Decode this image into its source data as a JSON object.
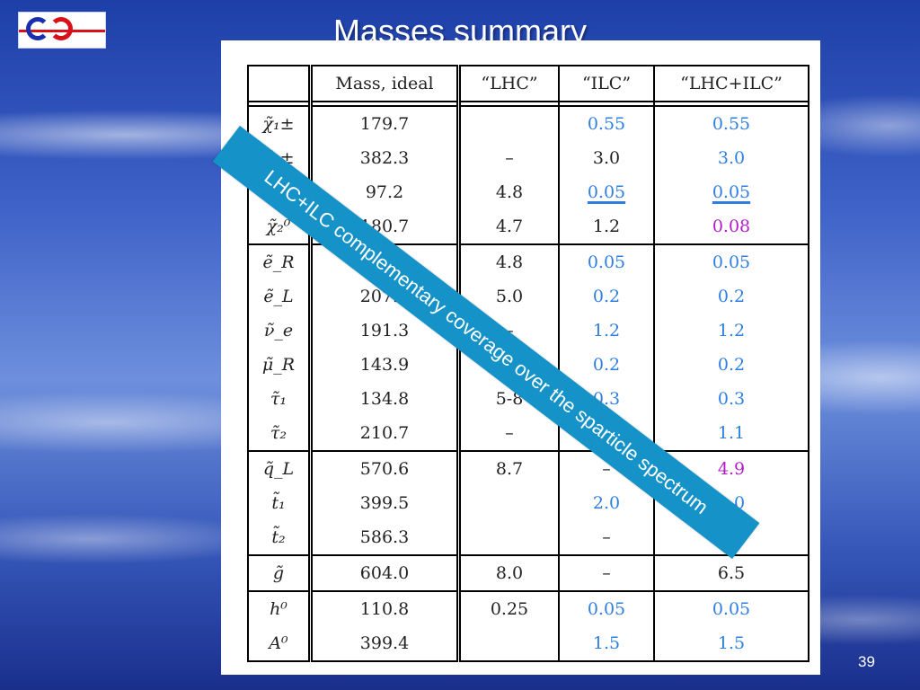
{
  "slide": {
    "title": "Masses summary",
    "page_number": "39",
    "banner": "LHC+ILC complementary coverage over the sparticle spectrum"
  },
  "table": {
    "headers": [
      "",
      "Mass, ideal",
      "“LHC”",
      "“ILC”",
      "“LHC+ILC”"
    ],
    "groups": [
      [
        {
          "p": "χ̃₁±",
          "mass": "179.7",
          "lhc": "",
          "ilc": "0.55",
          "ilc_style": "blue",
          "comb": "0.55",
          "comb_style": "blue"
        },
        {
          "p": "χ̃₂±",
          "mass": "382.3",
          "lhc": "–",
          "ilc": "3.0",
          "ilc_style": "black",
          "comb": "3.0",
          "comb_style": "blue"
        },
        {
          "p": "χ̃₁⁰",
          "mass": "97.2",
          "lhc": "4.8",
          "ilc": "0.05",
          "ilc_style": "blue ul",
          "comb": "0.05",
          "comb_style": "blue ul"
        },
        {
          "p": "χ̃₂⁰",
          "mass": "180.7",
          "lhc": "4.7",
          "ilc": "1.2",
          "ilc_style": "black",
          "comb": "0.08",
          "comb_style": "magenta"
        }
      ],
      [
        {
          "p": "ẽ_R",
          "mass": "",
          "lhc": "4.8",
          "ilc": "0.05",
          "ilc_style": "blue",
          "comb": "0.05",
          "comb_style": "blue"
        },
        {
          "p": "ẽ_L",
          "mass": "207.1",
          "lhc": "5.0",
          "ilc": "0.2",
          "ilc_style": "blue",
          "comb": "0.2",
          "comb_style": "blue"
        },
        {
          "p": "ν̃_e",
          "mass": "191.3",
          "lhc": "–",
          "ilc": "1.2",
          "ilc_style": "blue",
          "comb": "1.2",
          "comb_style": "blue"
        },
        {
          "p": "μ̃_R",
          "mass": "143.9",
          "lhc": "",
          "ilc": "0.2",
          "ilc_style": "blue",
          "comb": "0.2",
          "comb_style": "blue"
        },
        {
          "p": "τ̃₁",
          "mass": "134.8",
          "lhc": "5-8",
          "ilc": "0.3",
          "ilc_style": "blue",
          "comb": "0.3",
          "comb_style": "blue"
        },
        {
          "p": "τ̃₂",
          "mass": "210.7",
          "lhc": "–",
          "ilc": "",
          "ilc_style": "blue",
          "comb": "1.1",
          "comb_style": "blue"
        }
      ],
      [
        {
          "p": "q̃_L",
          "mass": "570.6",
          "lhc": "8.7",
          "ilc": "–",
          "ilc_style": "black",
          "comb": "4.9",
          "comb_style": "magenta"
        },
        {
          "p": "t̃₁",
          "mass": "399.5",
          "lhc": "",
          "ilc": "2.0",
          "ilc_style": "blue",
          "comb": "2.0",
          "comb_style": "blue"
        },
        {
          "p": "t̃₂",
          "mass": "586.3",
          "lhc": "",
          "ilc": "–",
          "ilc_style": "black",
          "comb": "",
          "comb_style": "black"
        }
      ],
      [
        {
          "p": "g̃",
          "mass": "604.0",
          "lhc": "8.0",
          "ilc": "–",
          "ilc_style": "black",
          "comb": "6.5",
          "comb_style": "black"
        }
      ],
      [
        {
          "p": "h⁰",
          "mass": "110.8",
          "lhc": "0.25",
          "ilc": "0.05",
          "ilc_style": "blue",
          "comb": "0.05",
          "comb_style": "blue"
        },
        {
          "p": "A⁰",
          "mass": "399.4",
          "lhc": "",
          "ilc": "1.5",
          "ilc_style": "blue",
          "comb": "1.5",
          "comb_style": "blue"
        }
      ]
    ]
  },
  "colors": {
    "ilc_blue": "#2f7fe0",
    "combined_magenta": "#b01cc8",
    "banner": "#1593c9"
  },
  "logo_icon": "e-c-logo-icon"
}
